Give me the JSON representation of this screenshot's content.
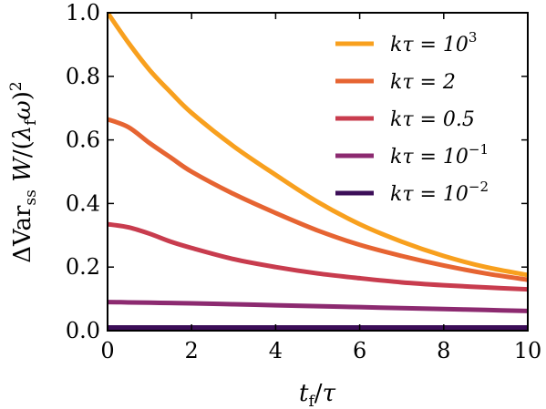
{
  "chart_data": {
    "type": "line",
    "xlabel": "t_f/τ",
    "ylabel": "ΔVar_ss W/(λ_f ω)^2",
    "xlim": [
      0,
      10
    ],
    "ylim": [
      0,
      1.0
    ],
    "x_ticks": [
      0,
      2,
      4,
      6,
      8,
      10
    ],
    "x_tick_labels": [
      "0",
      "2",
      "4",
      "6",
      "8",
      "10"
    ],
    "y_ticks": [
      0.0,
      0.2,
      0.4,
      0.6,
      0.8,
      1.0
    ],
    "y_tick_labels": [
      "0.0",
      "0.2",
      "0.4",
      "0.6",
      "0.8",
      "1.0"
    ],
    "grid": false,
    "legend_position": "top-right",
    "x": [
      0,
      0.5,
      1,
      1.5,
      2,
      3,
      4,
      5,
      6,
      7,
      8,
      9,
      10
    ],
    "series": [
      {
        "name": "kτ = 10^3",
        "color": "#f8a01e",
        "values": [
          1.0,
          0.905,
          0.82,
          0.75,
          0.685,
          0.58,
          0.49,
          0.405,
          0.335,
          0.28,
          0.235,
          0.2,
          0.175
        ]
      },
      {
        "name": "kτ = 2",
        "color": "#e66432",
        "values": [
          0.665,
          0.64,
          0.59,
          0.545,
          0.5,
          0.43,
          0.37,
          0.315,
          0.27,
          0.235,
          0.205,
          0.18,
          0.16
        ]
      },
      {
        "name": "kτ = 0.5",
        "color": "#c83c4e",
        "values": [
          0.335,
          0.325,
          0.305,
          0.28,
          0.26,
          0.225,
          0.2,
          0.18,
          0.165,
          0.152,
          0.143,
          0.136,
          0.13
        ]
      },
      {
        "name": "kτ = 10^-1",
        "color": "#8c2a70",
        "values": [
          0.09,
          0.089,
          0.088,
          0.087,
          0.086,
          0.083,
          0.08,
          0.077,
          0.074,
          0.071,
          0.068,
          0.065,
          0.062
        ]
      },
      {
        "name": "kτ = 10^-2",
        "color": "#3c0e58",
        "values": [
          0.01,
          0.01,
          0.01,
          0.01,
          0.01,
          0.01,
          0.01,
          0.01,
          0.01,
          0.01,
          0.01,
          0.01,
          0.01
        ]
      }
    ],
    "legend_labels": {
      "s0": {
        "base": "kτ = 10",
        "sup": "3"
      },
      "s1": {
        "base": "kτ = 2",
        "sup": ""
      },
      "s2": {
        "base": "kτ = 0.5",
        "sup": ""
      },
      "s3": {
        "base": "kτ = 10",
        "sup": "−1"
      },
      "s4": {
        "base": "kτ = 10",
        "sup": "−2"
      }
    }
  }
}
